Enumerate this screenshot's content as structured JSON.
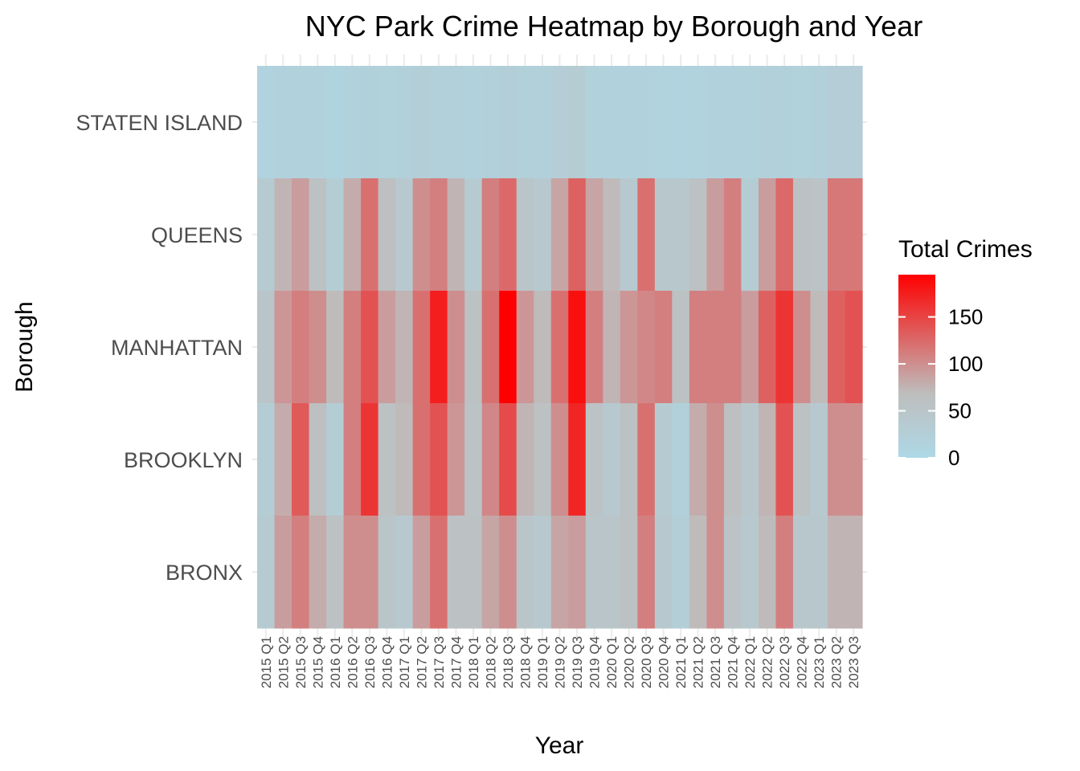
{
  "chart_data": {
    "type": "heatmap",
    "title": "NYC Park Crime Heatmap by Borough and Year",
    "xlabel": "Year",
    "ylabel": "Borough",
    "x": [
      "2015 Q1",
      "2015 Q2",
      "2015 Q3",
      "2015 Q4",
      "2016 Q1",
      "2016 Q2",
      "2016 Q3",
      "2016 Q4",
      "2017 Q1",
      "2017 Q2",
      "2017 Q3",
      "2017 Q4",
      "2018 Q1",
      "2018 Q2",
      "2018 Q3",
      "2018 Q4",
      "2019 Q1",
      "2019 Q2",
      "2019 Q3",
      "2019 Q4",
      "2020 Q1",
      "2020 Q2",
      "2020 Q3",
      "2020 Q4",
      "2021 Q1",
      "2021 Q2",
      "2021 Q3",
      "2021 Q4",
      "2022 Q1",
      "2022 Q2",
      "2022 Q3",
      "2022 Q4",
      "2023 Q1",
      "2023 Q2",
      "2023 Q3"
    ],
    "y": [
      "STATEN ISLAND",
      "QUEENS",
      "MANHATTAN",
      "BROOKLYN",
      "BRONX"
    ],
    "values": [
      [
        12,
        15,
        18,
        16,
        10,
        16,
        22,
        18,
        20,
        25,
        22,
        20,
        18,
        22,
        25,
        22,
        20,
        28,
        32,
        18,
        15,
        16,
        15,
        14,
        12,
        14,
        16,
        15,
        18,
        20,
        22,
        18,
        20,
        28,
        28
      ],
      [
        35,
        75,
        90,
        60,
        30,
        80,
        120,
        65,
        40,
        100,
        110,
        75,
        35,
        110,
        125,
        50,
        40,
        85,
        130,
        85,
        70,
        40,
        120,
        45,
        45,
        60,
        90,
        110,
        30,
        90,
        125,
        60,
        55,
        115,
        115
      ],
      [
        50,
        95,
        110,
        100,
        70,
        110,
        140,
        90,
        75,
        120,
        175,
        100,
        60,
        120,
        195,
        95,
        70,
        120,
        185,
        110,
        75,
        95,
        105,
        110,
        60,
        110,
        110,
        110,
        90,
        130,
        160,
        100,
        70,
        130,
        140
      ],
      [
        30,
        80,
        135,
        65,
        30,
        110,
        160,
        60,
        70,
        120,
        140,
        95,
        55,
        105,
        145,
        75,
        60,
        100,
        170,
        55,
        40,
        60,
        120,
        35,
        20,
        80,
        100,
        65,
        45,
        75,
        140,
        60,
        40,
        100,
        100
      ],
      [
        35,
        90,
        110,
        80,
        60,
        100,
        100,
        50,
        40,
        90,
        120,
        60,
        60,
        85,
        100,
        50,
        40,
        85,
        90,
        50,
        50,
        60,
        110,
        40,
        25,
        70,
        100,
        55,
        40,
        70,
        110,
        45,
        45,
        75,
        75
      ]
    ],
    "legend_title": "Total Crimes",
    "legend_ticks": [
      0,
      50,
      100,
      150
    ],
    "value_range": [
      0,
      195
    ],
    "color_low": "#add8e6",
    "color_mid": "#bebebe",
    "color_high": "#ff0000",
    "grid": true,
    "legend_position": "right"
  }
}
